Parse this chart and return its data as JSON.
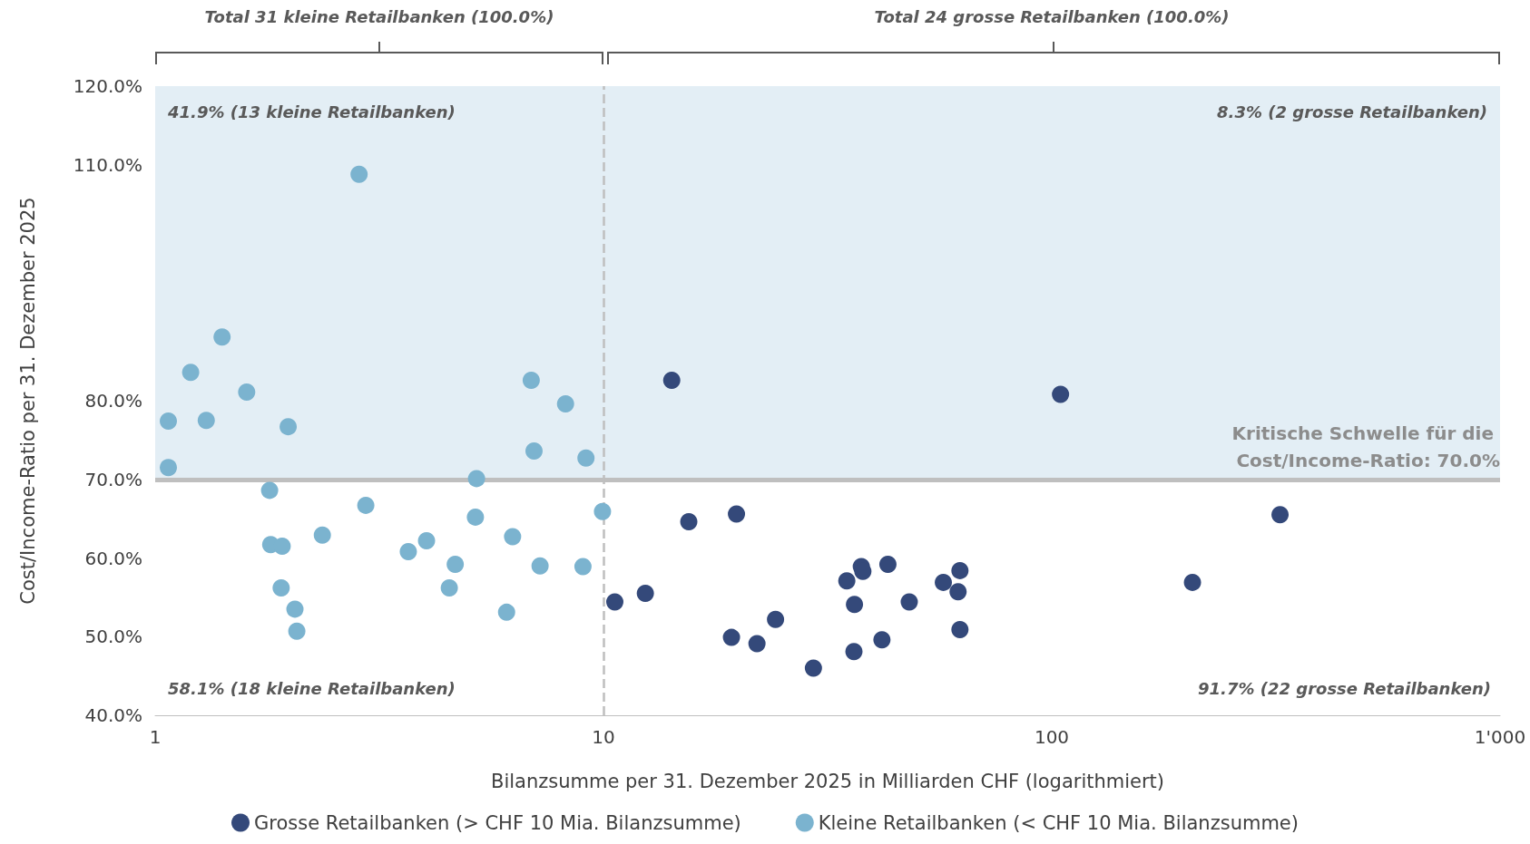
{
  "chart_data": {
    "type": "scatter",
    "xlabel": "Bilanzsumme per 31. Dezember 2025 in Milliarden CHF (logarithmiert)",
    "ylabel": "Cost/Income-Ratio per 31. Dezember 2025",
    "log": "x",
    "grid": false,
    "legend": "bottom",
    "marker": "circle",
    "xlim": [
      1,
      1000
    ],
    "xticks": [
      1,
      10,
      100,
      {
        "value": 1000,
        "label": "1'000"
      }
    ],
    "ylim": [
      40,
      120
    ],
    "yticks": [
      {
        "value": 40,
        "label": "40.0%"
      },
      {
        "value": 50,
        "label": "50.0%"
      },
      {
        "value": 60,
        "label": "60.0%"
      },
      {
        "value": 70,
        "label": "70.0%"
      },
      {
        "value": 80,
        "label": "80.0%"
      },
      {
        "value": 110,
        "label": "110.0%"
      },
      {
        "value": 120,
        "label": "120.0%"
      }
    ],
    "series": [
      {
        "name": "Grosse Retailbanken (> CHF 10 Mia. Bilanzsumme)",
        "color": "#34497a",
        "x": [
          10.6,
          12.4,
          14.2,
          15.5,
          19.3,
          19.8,
          22.0,
          24.2,
          29.4,
          34.9,
          36.3,
          36.2,
          37.6,
          37.9,
          41.8,
          43.1,
          48.1,
          57.3,
          61.8,
          62.4,
          62.4,
          104.6,
          206,
          323
        ],
        "values": [
          54.4,
          55.5,
          82.6,
          64.6,
          49.9,
          65.6,
          49.1,
          52.2,
          46.0,
          57.1,
          54.1,
          48.1,
          58.9,
          58.3,
          49.6,
          59.2,
          54.4,
          56.9,
          55.7,
          58.4,
          50.9,
          80.8,
          56.9,
          65.5
        ]
      },
      {
        "name": "Kleine Retailbanken (< CHF 10 Mia. Bilanzsumme)",
        "color": "#7bb3cf",
        "x": [
          1.07,
          1.07,
          1.2,
          1.3,
          1.41,
          1.6,
          1.98,
          1.8,
          1.81,
          1.92,
          1.91,
          2.05,
          2.07,
          2.36,
          2.85,
          2.95,
          3.67,
          4.03,
          4.53,
          4.67,
          5.21,
          5.18,
          6.08,
          6.27,
          6.9,
          7.0,
          7.22,
          8.23,
          9.0,
          9.14,
          9.95
        ],
        "values": [
          77.4,
          71.5,
          83.6,
          77.5,
          88.1,
          81.1,
          76.7,
          68.6,
          61.7,
          61.5,
          56.2,
          53.5,
          50.7,
          62.9,
          108.8,
          66.7,
          60.8,
          62.2,
          56.2,
          59.2,
          70.1,
          65.2,
          53.1,
          62.7,
          82.6,
          73.6,
          59.0,
          79.6,
          58.9,
          72.7,
          65.9
        ]
      }
    ],
    "ref_lines": [
      {
        "axis": "y",
        "value": 70,
        "label": "Kritische Schwelle für die Cost/Income-Ratio: 70.0%",
        "color": "#bfbfbf",
        "line_style": "solid"
      },
      {
        "axis": "x",
        "value": 10,
        "label": null,
        "color": "#bfbfbf",
        "line_style": "dashed"
      }
    ],
    "bands": [
      {
        "axis": "y",
        "from": 70,
        "to": 120,
        "label": null,
        "color": "#e3eef5"
      }
    ],
    "annotations": [
      "Total 31 kleine Retailbanken (100.0%)",
      "Total 24 grosse Retailbanken (100.0%)",
      "41.9% (13 kleine Retailbanken)",
      "8.3% (2 grosse Retailbanken)",
      "58.1% (18 kleine Retailbanken)",
      "91.7% (22 grosse Retailbanken)"
    ]
  }
}
